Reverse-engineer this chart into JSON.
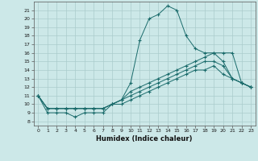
{
  "xlabel": "Humidex (Indice chaleur)",
  "background_color": "#cce8e8",
  "grid_color": "#aacccc",
  "line_color": "#1a6b6b",
  "xlim": [
    -0.5,
    23.5
  ],
  "ylim": [
    7.5,
    22
  ],
  "xticks": [
    0,
    1,
    2,
    3,
    4,
    5,
    6,
    7,
    8,
    9,
    10,
    11,
    12,
    13,
    14,
    15,
    16,
    17,
    18,
    19,
    20,
    21,
    22,
    23
  ],
  "yticks": [
    8,
    9,
    10,
    11,
    12,
    13,
    14,
    15,
    16,
    17,
    18,
    19,
    20,
    21
  ],
  "series": [
    [
      11.0,
      9.0,
      9.0,
      9.0,
      8.5,
      9.0,
      9.0,
      9.0,
      10.0,
      10.5,
      12.5,
      17.5,
      20.0,
      20.5,
      21.5,
      21.0,
      18.0,
      16.5,
      16.0,
      16.0,
      15.0,
      13.0,
      12.5,
      12.0
    ],
    [
      11.0,
      9.5,
      9.5,
      9.5,
      9.5,
      9.5,
      9.5,
      9.5,
      10.0,
      10.5,
      11.5,
      12.0,
      12.5,
      13.0,
      13.5,
      14.0,
      14.5,
      15.0,
      15.5,
      16.0,
      16.0,
      16.0,
      12.5,
      12.0
    ],
    [
      11.0,
      9.5,
      9.5,
      9.5,
      9.5,
      9.5,
      9.5,
      9.5,
      10.0,
      10.5,
      11.0,
      11.5,
      12.0,
      12.5,
      13.0,
      13.5,
      14.0,
      14.5,
      15.0,
      15.0,
      14.5,
      13.0,
      12.5,
      12.0
    ],
    [
      11.0,
      9.5,
      9.5,
      9.5,
      9.5,
      9.5,
      9.5,
      9.5,
      10.0,
      10.0,
      10.5,
      11.0,
      11.5,
      12.0,
      12.5,
      13.0,
      13.5,
      14.0,
      14.0,
      14.5,
      13.5,
      13.0,
      12.5,
      12.0
    ]
  ]
}
